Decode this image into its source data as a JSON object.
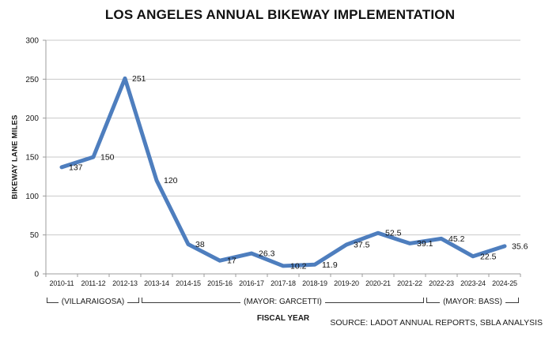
{
  "title": "LOS ANGELES ANNUAL BIKEWAY IMPLEMENTATION",
  "footer": {
    "source": "SOURCE: LADOT ANNUAL REPORTS, SBLA ANALYSIS"
  },
  "chart_data": {
    "type": "line",
    "title": "LOS ANGELES ANNUAL BIKEWAY IMPLEMENTATION",
    "xlabel": "FISCAL YEAR",
    "ylabel": "BIKEWAY LANE MILES",
    "categories": [
      "2010-11",
      "2011-12",
      "2012-13",
      "2013-14",
      "2014-15",
      "2015-16",
      "2016-17",
      "2017-18",
      "2018-19",
      "2019-20",
      "2020-21",
      "2021-22",
      "2022-23",
      "2023-24",
      "2024-25"
    ],
    "values": [
      137,
      150,
      251,
      120,
      38,
      17,
      26.3,
      10.2,
      11.9,
      37.5,
      52.5,
      39.1,
      45.2,
      22.5,
      35.6
    ],
    "ylim": [
      0,
      300
    ],
    "ytick_step": 50,
    "grid": true,
    "legend": "none",
    "colors": {
      "line": "#4E7EBE",
      "grid": "#C9C9C9",
      "axis": "#9C9C9C",
      "text": "#1a1a1a"
    },
    "annotations": [
      {
        "label": "(VILLARAIGOSA)",
        "start": 0,
        "end": 2
      },
      {
        "label": "(MAYOR: GARCETTI)",
        "start": 3,
        "end": 11
      },
      {
        "label": "(MAYOR: BASS)",
        "start": 12,
        "end": 14
      }
    ]
  }
}
